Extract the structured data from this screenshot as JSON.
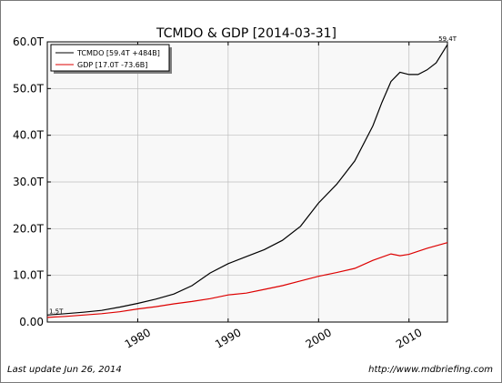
{
  "chart_data": {
    "type": "line",
    "title": "TCMDO & GDP  [2014-03-31]",
    "xlabel": "",
    "ylabel": "",
    "xlim": [
      1970,
      2014.25
    ],
    "ylim": [
      0,
      60
    ],
    "y_ticks": [
      {
        "value": 0,
        "label": "0.00"
      },
      {
        "value": 10,
        "label": "10.0T"
      },
      {
        "value": 20,
        "label": "20.0T"
      },
      {
        "value": 30,
        "label": "30.0T"
      },
      {
        "value": 40,
        "label": "40.0T"
      },
      {
        "value": 50,
        "label": "50.0T"
      },
      {
        "value": 60,
        "label": "60.0T"
      }
    ],
    "x_ticks": [
      {
        "value": 1980,
        "label": "1980"
      },
      {
        "value": 1990,
        "label": "1990"
      },
      {
        "value": 2000,
        "label": "2000"
      },
      {
        "value": 2010,
        "label": "2010"
      }
    ],
    "grid": true,
    "legend_position": "top-left",
    "series": [
      {
        "name": "TCMDO [59.4T +484B]",
        "color": "#000000",
        "x": [
          1970,
          1972,
          1974,
          1976,
          1978,
          1980,
          1982,
          1984,
          1986,
          1988,
          1990,
          1992,
          1994,
          1996,
          1998,
          2000,
          2002,
          2004,
          2006,
          2007,
          2008,
          2009,
          2010,
          2011,
          2012,
          2013,
          2014.25
        ],
        "y": [
          1.5,
          1.8,
          2.1,
          2.5,
          3.2,
          4.0,
          4.9,
          6.0,
          7.8,
          10.5,
          12.5,
          14.0,
          15.5,
          17.5,
          20.5,
          25.5,
          29.5,
          34.5,
          42.0,
          47.0,
          51.5,
          53.5,
          53.0,
          53.0,
          54.0,
          55.5,
          59.4
        ]
      },
      {
        "name": "GDP [17.0T -73.6B]",
        "color": "#dd0000",
        "x": [
          1970,
          1972,
          1974,
          1976,
          1978,
          1980,
          1982,
          1984,
          1986,
          1988,
          1990,
          1992,
          1994,
          1996,
          1998,
          2000,
          2002,
          2004,
          2006,
          2008,
          2009,
          2010,
          2012,
          2014.25
        ],
        "y": [
          1.0,
          1.2,
          1.5,
          1.8,
          2.2,
          2.8,
          3.3,
          3.9,
          4.4,
          5.0,
          5.8,
          6.2,
          7.0,
          7.8,
          8.8,
          9.8,
          10.6,
          11.5,
          13.2,
          14.6,
          14.2,
          14.5,
          15.8,
          17.0
        ]
      }
    ],
    "annotations": [
      {
        "label": "59.4T",
        "x": 2014.25,
        "y": 59.4
      },
      {
        "label": "1.5T",
        "x": 1970,
        "y": 1.5
      }
    ]
  },
  "footer": {
    "left": "Last update Jun 26, 2014",
    "right": "http://www.mdbriefing.com"
  }
}
